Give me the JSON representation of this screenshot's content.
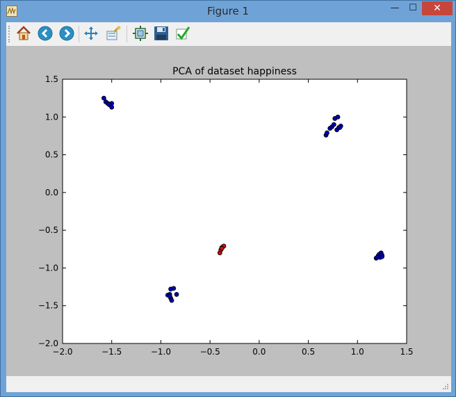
{
  "window": {
    "title": "Figure 1",
    "controls": {
      "minimize": "—",
      "maximize": "☐",
      "close": "✕"
    }
  },
  "toolbar": {
    "buttons": [
      {
        "name": "home",
        "icon": "home-icon"
      },
      {
        "name": "back",
        "icon": "arrow-left-icon"
      },
      {
        "name": "forward",
        "icon": "arrow-right-icon"
      },
      {
        "name": "pan",
        "icon": "move-arrows-icon"
      },
      {
        "name": "zoom",
        "icon": "zoom-rect-icon"
      },
      {
        "name": "subplots",
        "icon": "configure-subplots-icon"
      },
      {
        "name": "save",
        "icon": "floppy-disk-icon"
      },
      {
        "name": "edit",
        "icon": "checkmark-icon"
      }
    ]
  },
  "colors": {
    "plot_background": "#bfbfbf",
    "axes_face": "#ffffff",
    "series_blue": "#0000b3",
    "series_red": "#cc1111"
  },
  "chart_data": {
    "type": "scatter",
    "title": "PCA of dataset happiness",
    "xlabel": "",
    "ylabel": "",
    "xlim": [
      -2.0,
      1.5
    ],
    "ylim": [
      -2.0,
      1.5
    ],
    "xticks": [
      "−2.0",
      "−1.5",
      "−1.0",
      "−0.5",
      "0.0",
      "0.5",
      "1.0",
      "1.5"
    ],
    "xtick_values": [
      -2.0,
      -1.5,
      -1.0,
      -0.5,
      0.0,
      0.5,
      1.0,
      1.5
    ],
    "yticks": [
      "1.5",
      "1.0",
      "0.5",
      "0.0",
      "−0.5",
      "−1.0",
      "−1.5",
      "−2.0"
    ],
    "ytick_values": [
      1.5,
      1.0,
      0.5,
      0.0,
      -0.5,
      -1.0,
      -1.5,
      -2.0
    ],
    "grid": false,
    "series": [
      {
        "color": "#0000b3",
        "points": [
          [
            -1.58,
            1.25
          ],
          [
            -1.56,
            1.2
          ],
          [
            -1.54,
            1.18
          ],
          [
            -1.52,
            1.16
          ],
          [
            -1.5,
            1.13
          ],
          [
            -1.5,
            1.18
          ],
          [
            -1.53,
            1.17
          ],
          [
            0.68,
            0.76
          ],
          [
            0.69,
            0.79
          ],
          [
            0.72,
            0.85
          ],
          [
            0.74,
            0.87
          ],
          [
            0.76,
            0.9
          ],
          [
            0.77,
            0.98
          ],
          [
            0.8,
            1.0
          ],
          [
            0.79,
            0.83
          ],
          [
            0.81,
            0.86
          ],
          [
            0.83,
            0.88
          ],
          [
            0.82,
            0.86
          ],
          [
            1.19,
            -0.87
          ],
          [
            1.21,
            -0.84
          ],
          [
            1.22,
            -0.82
          ],
          [
            1.24,
            -0.8
          ],
          [
            1.25,
            -0.83
          ],
          [
            1.23,
            -0.86
          ],
          [
            1.2,
            -0.86
          ],
          [
            1.25,
            -0.85
          ],
          [
            -0.9,
            -1.28
          ],
          [
            -0.87,
            -1.27
          ],
          [
            -0.93,
            -1.36
          ],
          [
            -0.91,
            -1.35
          ],
          [
            -0.9,
            -1.4
          ],
          [
            -0.89,
            -1.43
          ],
          [
            -0.84,
            -1.35
          ],
          [
            -0.91,
            -1.37
          ]
        ]
      },
      {
        "color": "#cc1111",
        "points": [
          [
            -0.4,
            -0.8
          ],
          [
            -0.39,
            -0.76
          ],
          [
            -0.38,
            -0.73
          ],
          [
            -0.37,
            -0.72
          ],
          [
            -0.36,
            -0.71
          ],
          [
            -0.38,
            -0.74
          ]
        ]
      }
    ]
  }
}
